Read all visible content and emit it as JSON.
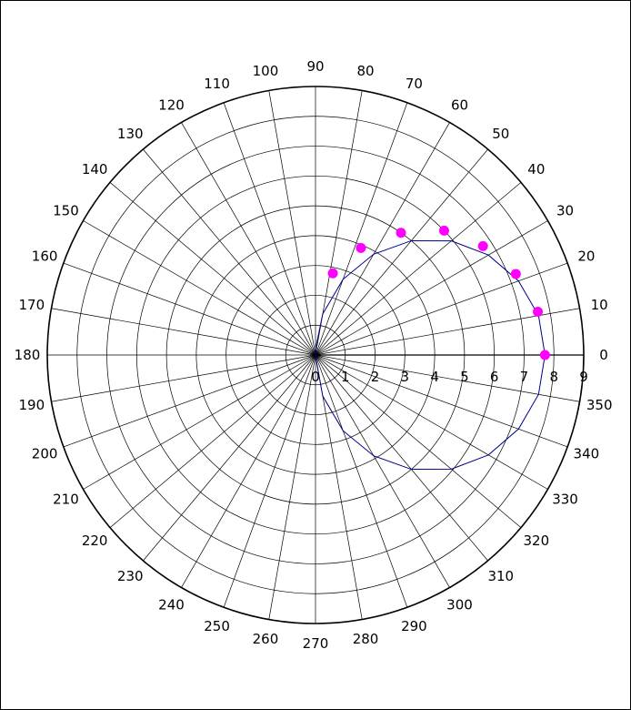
{
  "chart_data": {
    "type": "polar",
    "title": "",
    "radial_axis": {
      "range": [
        0,
        9
      ],
      "ticks": [
        0,
        1,
        2,
        3,
        4,
        5,
        6,
        7,
        8,
        9
      ],
      "tick_labels": [
        "0",
        "1",
        "2",
        "3",
        "4",
        "5",
        "6",
        "7",
        "8",
        "9"
      ],
      "label_angle_deg": 0
    },
    "angular_axis": {
      "unit": "degrees",
      "ticks": [
        0,
        10,
        20,
        30,
        40,
        50,
        60,
        70,
        80,
        90,
        100,
        110,
        120,
        130,
        140,
        150,
        160,
        170,
        180,
        190,
        200,
        210,
        220,
        230,
        240,
        250,
        260,
        270,
        280,
        290,
        300,
        310,
        320,
        330,
        340,
        350
      ],
      "tick_labels": [
        "0",
        "10",
        "20",
        "30",
        "40",
        "50",
        "60",
        "70",
        "80",
        "90",
        "100",
        "110",
        "120",
        "130",
        "140",
        "150",
        "160",
        "170",
        "180",
        "190",
        "200",
        "210",
        "220",
        "230",
        "240",
        "250",
        "260",
        "270",
        "280",
        "290",
        "300",
        "310",
        "320",
        "330",
        "340",
        "350"
      ]
    },
    "grid": true,
    "curve": {
      "name": "",
      "color": "#00008b",
      "theta": [
        0,
        10,
        20,
        30,
        40,
        50,
        60,
        70,
        80,
        90,
        100,
        110,
        120,
        130,
        140,
        150,
        160,
        170,
        180,
        190,
        200,
        210,
        220,
        230,
        240,
        250,
        260,
        270,
        280,
        290,
        300,
        310,
        320,
        330,
        340,
        350,
        360
      ],
      "r": [
        7.7,
        7.6,
        7.25,
        6.7,
        5.95,
        5.0,
        3.9,
        2.7,
        1.4,
        0.2,
        0.05,
        0.0,
        0.0,
        0.0,
        0.0,
        0.0,
        0.0,
        0.0,
        0.0,
        0.0,
        0.0,
        0.0,
        0.0,
        0.0,
        0.0,
        0.0,
        0.0,
        0.05,
        1.4,
        2.7,
        3.9,
        5.0,
        5.95,
        6.7,
        7.25,
        7.6,
        7.7
      ]
    },
    "markers": {
      "name": "",
      "color": "#ff00ff",
      "theta": [
        0,
        11,
        22,
        33,
        44,
        55,
        67,
        78
      ],
      "r": [
        7.7,
        7.6,
        7.25,
        6.7,
        6.0,
        5.0,
        3.9,
        2.8
      ]
    }
  }
}
